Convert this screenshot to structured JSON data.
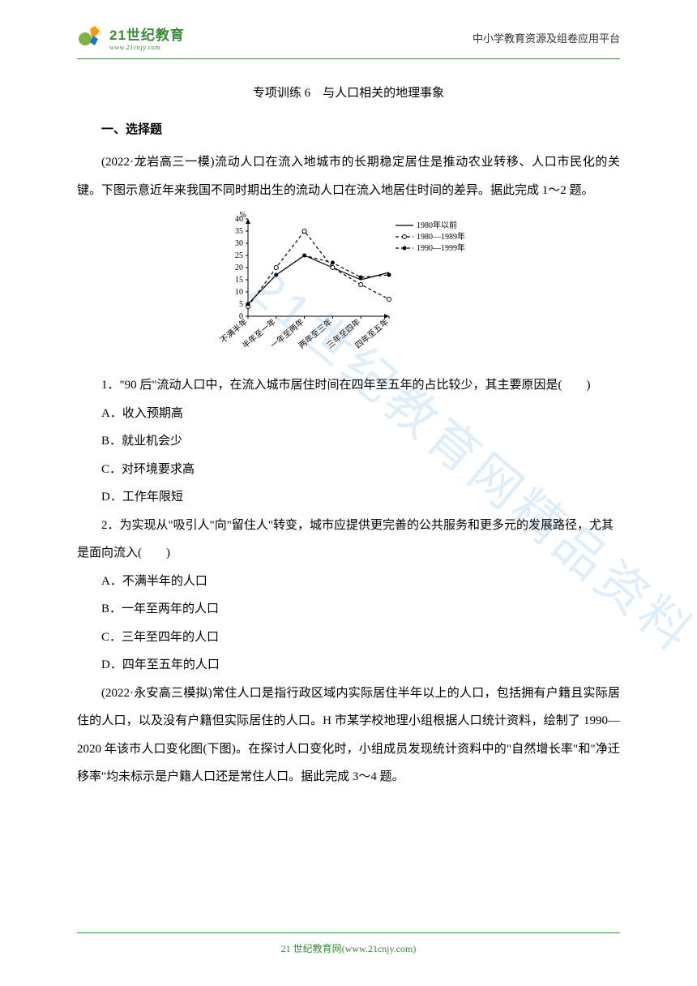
{
  "header": {
    "logo_title": "21世纪教育",
    "logo_subtitle": "www.21cnjy.com",
    "right_text": "中小学教育资源及组卷应用平台"
  },
  "title": "专项训练 6　与人口相关的地理事象",
  "section1": "一、选择题",
  "intro1": "(2022·龙岩高三一模)流动人口在流入地城市的长期稳定居住是推动农业转移、人口市民化的关键。下图示意近年来我国不同时期出生的流动人口在流入地居住时间的差异。据此完成 1～2 题。",
  "chart": {
    "type": "line",
    "x_categories": [
      "不满半年",
      "半年至一年",
      "一年至两年",
      "两年至三年",
      "三年至四年",
      "四年至五年"
    ],
    "y_ticks": [
      0,
      5,
      10,
      15,
      20,
      25,
      30,
      35,
      40
    ],
    "y_label": "%",
    "series": [
      {
        "name": "1980年以前",
        "values": [
          5,
          17,
          25,
          20,
          15,
          18
        ],
        "color": "#000000",
        "style": "solid",
        "marker": "none"
      },
      {
        "name": "1980—1989年",
        "values": [
          4,
          20,
          35,
          20,
          13,
          7
        ],
        "color": "#000000",
        "style": "dashed",
        "marker": "circle-open"
      },
      {
        "name": "1990—1999年",
        "values": [
          5,
          17,
          25,
          22,
          16,
          17
        ],
        "color": "#000000",
        "style": "dashed",
        "marker": "circle-filled"
      }
    ],
    "xlim": [
      0,
      5
    ],
    "ylim": [
      0,
      40
    ],
    "background_color": "#ffffff",
    "axis_color": "#000000",
    "label_fontsize": 10
  },
  "q1": {
    "stem": "1．\"90 后\"流动人口中，在流入城市居住时间在四年至五年的占比较少，其主要原因是(　　)",
    "a": "A．收入预期高",
    "b": "B．就业机会少",
    "c": "C．对环境要求高",
    "d": "D．工作年限短"
  },
  "q2": {
    "stem": "2．为实现从\"吸引人\"向\"留住人\"转变，城市应提供更完善的公共服务和更多元的发展路径，尤其是面向流入(　　)",
    "a": "A．不满半年的人口",
    "b": "B．一年至两年的人口",
    "c": "C．三年至四年的人口",
    "d": "D．四年至五年的人口"
  },
  "intro2": "(2022·永安高三模拟)常住人口是指行政区域内实际居住半年以上的人口，包括拥有户籍且实际居住的人口，以及没有户籍但实际居住的人口。H 市某学校地理小组根据人口统计资料，绘制了 1990—2020 年该市人口变化图(下图)。在探讨人口变化时，小组成员发现统计资料中的\"自然增长率\"和\"净迁移率\"均未标示是户籍人口还是常住人口。据此完成 3～4 题。",
  "watermark": "21世纪教育网精品资料",
  "footer": "21 世纪教育网(www.21cnjy.com)"
}
